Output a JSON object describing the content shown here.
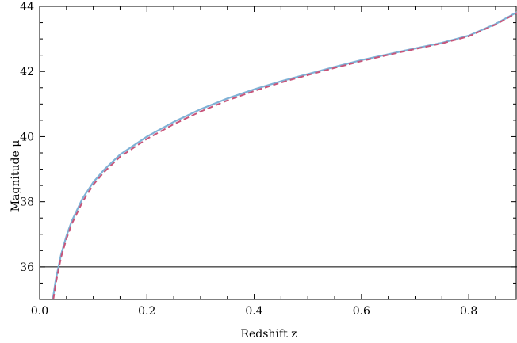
{
  "chart_data": {
    "type": "line",
    "xlabel": "Redshift z",
    "ylabel": "Magnitude μ",
    "xlim": [
      0.0,
      0.89
    ],
    "ylim": [
      35.0,
      44.0
    ],
    "x_ticks": [
      "0.0",
      "0.2",
      "0.4",
      "0.6",
      "0.8"
    ],
    "y_ticks": [
      "36",
      "38",
      "40",
      "42",
      "44"
    ],
    "grid": false,
    "legend": "none",
    "series": [
      {
        "style": "solid",
        "color": "#7fb2d6",
        "x": [
          0.0245,
          0.03,
          0.04,
          0.05,
          0.06,
          0.08,
          0.1,
          0.12,
          0.15,
          0.2,
          0.25,
          0.3,
          0.35,
          0.4,
          0.45,
          0.5,
          0.55,
          0.6,
          0.65,
          0.7,
          0.75,
          0.8,
          0.85,
          0.89
        ],
        "y": [
          35.0,
          35.6,
          36.38,
          36.95,
          37.41,
          38.1,
          38.6,
          38.98,
          39.45,
          40.0,
          40.45,
          40.84,
          41.17,
          41.45,
          41.7,
          41.92,
          42.14,
          42.35,
          42.53,
          42.71,
          42.88,
          43.1,
          43.46,
          43.82
        ]
      },
      {
        "style": "dashed",
        "color": "#c8557a",
        "x": [
          0.0255,
          0.03,
          0.04,
          0.05,
          0.06,
          0.08,
          0.1,
          0.12,
          0.15,
          0.2,
          0.25,
          0.3,
          0.35,
          0.4,
          0.45,
          0.5,
          0.55,
          0.6,
          0.65,
          0.7,
          0.75,
          0.8,
          0.85,
          0.89
        ],
        "y": [
          35.0,
          35.48,
          36.3,
          36.86,
          37.32,
          38.0,
          38.52,
          38.91,
          39.38,
          39.93,
          40.38,
          40.77,
          41.11,
          41.4,
          41.66,
          41.89,
          42.11,
          42.32,
          42.51,
          42.69,
          42.86,
          43.08,
          43.44,
          43.8
        ]
      }
    ],
    "reference_lines": [
      {
        "orientation": "horizontal",
        "y": 36.0,
        "color": "#000000"
      }
    ]
  }
}
